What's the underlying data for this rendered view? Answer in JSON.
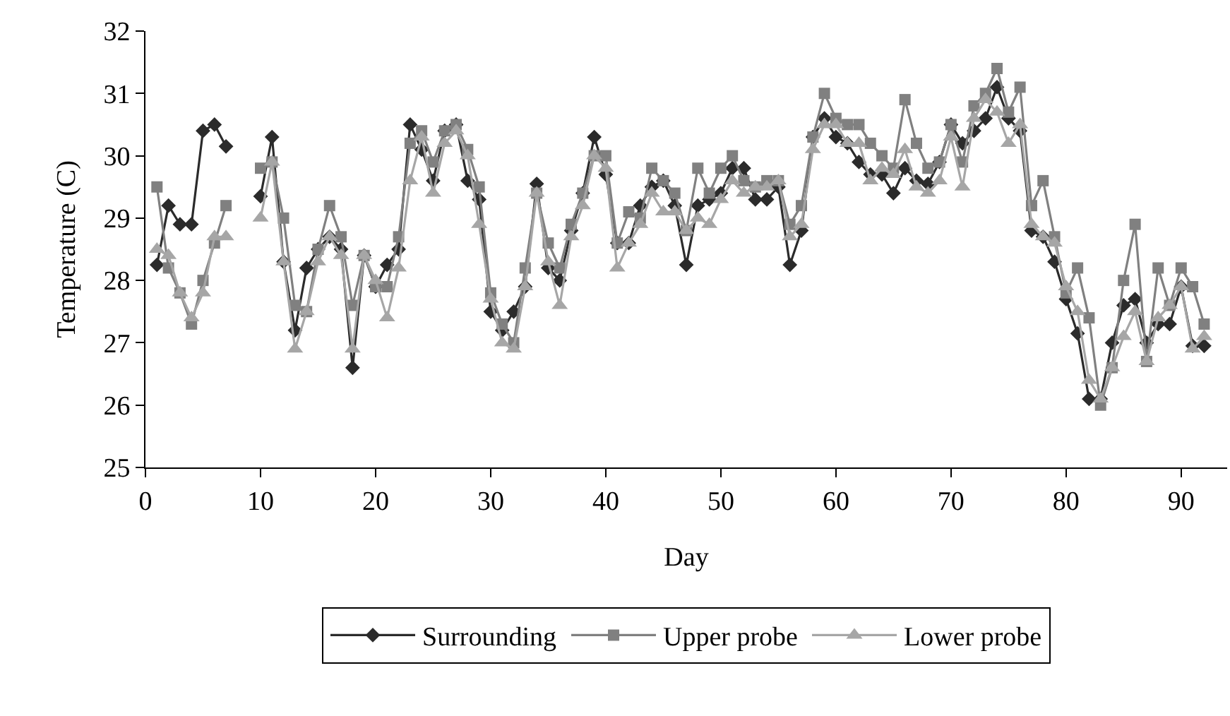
{
  "chart_data": {
    "type": "line",
    "xlabel": "Day",
    "ylabel": "Temperature (C)",
    "x": [
      1,
      2,
      3,
      4,
      5,
      6,
      7,
      8,
      9,
      10,
      11,
      12,
      13,
      14,
      15,
      16,
      17,
      18,
      19,
      20,
      21,
      22,
      23,
      24,
      25,
      26,
      27,
      28,
      29,
      30,
      31,
      32,
      33,
      34,
      35,
      36,
      37,
      38,
      39,
      40,
      41,
      42,
      43,
      44,
      45,
      46,
      47,
      48,
      49,
      50,
      51,
      52,
      53,
      54,
      55,
      56,
      57,
      58,
      59,
      60,
      61,
      62,
      63,
      64,
      65,
      66,
      67,
      68,
      69,
      70,
      71,
      72,
      73,
      74,
      75,
      76,
      77,
      78,
      79,
      80,
      81,
      82,
      83,
      84,
      85,
      86,
      87,
      88,
      89,
      90,
      91,
      92
    ],
    "series": [
      {
        "name": "Surrounding",
        "color": "#2b2b2b",
        "marker": "diamond",
        "values": [
          28.25,
          29.2,
          28.9,
          28.9,
          30.4,
          30.5,
          30.15,
          null,
          null,
          29.35,
          30.3,
          28.3,
          27.2,
          28.2,
          28.5,
          28.7,
          28.5,
          26.6,
          28.4,
          27.9,
          28.25,
          28.5,
          30.5,
          30.1,
          29.6,
          30.4,
          30.5,
          29.6,
          29.3,
          27.5,
          27.2,
          27.5,
          27.9,
          29.55,
          28.2,
          28.0,
          28.8,
          29.4,
          30.3,
          29.7,
          28.6,
          28.6,
          29.2,
          29.5,
          29.6,
          29.2,
          28.25,
          29.2,
          29.3,
          29.4,
          29.8,
          29.8,
          29.3,
          29.3,
          29.5,
          28.25,
          28.8,
          30.3,
          30.6,
          30.3,
          30.2,
          29.9,
          29.7,
          29.7,
          29.4,
          29.8,
          29.6,
          29.55,
          29.9,
          30.5,
          30.2,
          30.4,
          30.6,
          31.1,
          30.6,
          30.4,
          28.8,
          28.7,
          28.3,
          27.7,
          27.15,
          26.1,
          26.1,
          27.0,
          27.6,
          27.7,
          27.0,
          27.3,
          27.3,
          27.9,
          26.95,
          26.95
        ]
      },
      {
        "name": "Upper probe",
        "color": "#808080",
        "marker": "square",
        "values": [
          29.5,
          28.2,
          27.8,
          27.3,
          28.0,
          28.6,
          29.2,
          null,
          null,
          29.8,
          29.9,
          29.0,
          27.6,
          27.5,
          28.5,
          29.2,
          28.7,
          27.6,
          28.4,
          27.9,
          27.9,
          28.7,
          30.2,
          30.4,
          29.9,
          30.4,
          30.5,
          30.1,
          29.5,
          27.8,
          27.3,
          27.0,
          28.2,
          29.4,
          28.6,
          28.2,
          28.9,
          29.4,
          30.0,
          30.0,
          28.6,
          29.1,
          29.0,
          29.8,
          29.6,
          29.4,
          28.8,
          29.8,
          29.4,
          29.8,
          30.0,
          29.6,
          29.5,
          29.6,
          29.6,
          28.9,
          29.2,
          30.3,
          31.0,
          30.6,
          30.5,
          30.5,
          30.2,
          30.0,
          29.8,
          30.9,
          30.2,
          29.8,
          29.9,
          30.5,
          29.9,
          30.8,
          31.0,
          31.4,
          30.7,
          31.1,
          29.2,
          29.6,
          28.7,
          27.8,
          28.2,
          27.4,
          26.0,
          26.6,
          28.0,
          28.9,
          26.7,
          28.2,
          27.6,
          28.2,
          27.9,
          27.3
        ]
      },
      {
        "name": "Lower probe",
        "color": "#a6a6a6",
        "marker": "triangle",
        "values": [
          28.5,
          28.4,
          27.8,
          27.4,
          27.8,
          28.7,
          28.7,
          null,
          null,
          29.0,
          29.9,
          28.3,
          26.9,
          27.5,
          28.3,
          28.7,
          28.4,
          26.9,
          28.4,
          28.0,
          27.4,
          28.2,
          29.6,
          30.3,
          29.4,
          30.2,
          30.4,
          30.0,
          28.9,
          27.7,
          27.0,
          26.9,
          27.9,
          29.4,
          28.3,
          27.6,
          28.7,
          29.2,
          30.0,
          29.8,
          28.2,
          28.6,
          28.9,
          29.4,
          29.1,
          29.1,
          28.8,
          29.0,
          28.9,
          29.3,
          29.6,
          29.4,
          29.5,
          29.5,
          29.6,
          28.7,
          28.9,
          30.1,
          30.5,
          30.5,
          30.2,
          30.2,
          29.6,
          29.8,
          29.7,
          30.1,
          29.5,
          29.4,
          29.6,
          30.3,
          29.5,
          30.6,
          30.9,
          30.7,
          30.2,
          30.5,
          28.9,
          28.7,
          28.6,
          27.9,
          27.5,
          26.4,
          26.1,
          26.6,
          27.1,
          27.5,
          26.7,
          27.4,
          27.6,
          27.9,
          26.9,
          27.1
        ]
      }
    ],
    "xlim": [
      0,
      94
    ],
    "xticks": [
      0,
      10,
      20,
      30,
      40,
      50,
      60,
      70,
      80,
      90
    ],
    "ylim": [
      25,
      32
    ],
    "yticks": [
      25,
      26,
      27,
      28,
      29,
      30,
      31,
      32
    ],
    "grid": false,
    "legend": "bottom",
    "line_style": "solid"
  }
}
